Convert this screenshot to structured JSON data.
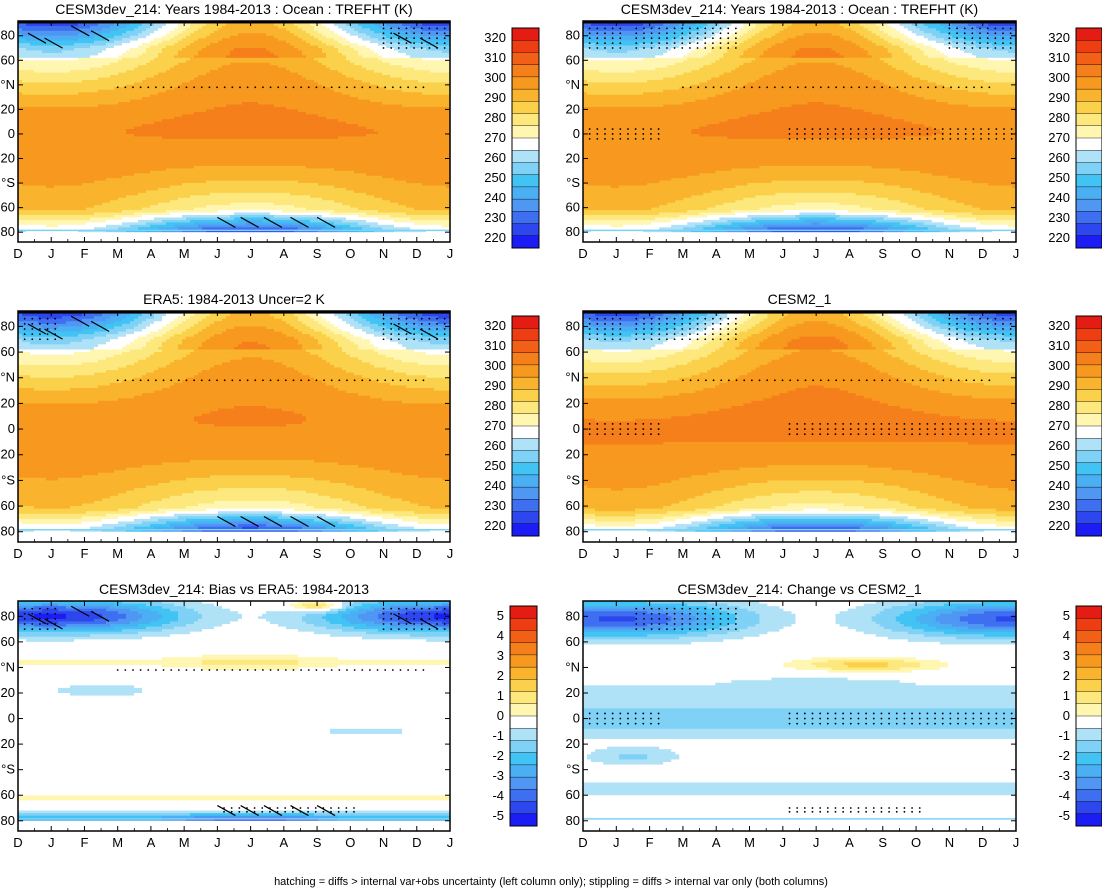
{
  "footer": "hatching = diffs > internal var+obs uncertainty (left column only); stippling = diffs > internal var only (both columns)",
  "palette_abs": [
    "#1c1cf5",
    "#2d46ee",
    "#3e6ff0",
    "#4f97f3",
    "#4ab0f3",
    "#41c4f4",
    "#7fd1f6",
    "#b0e2f7",
    "#ffffff",
    "#fff6b2",
    "#fde87e",
    "#fbd14b",
    "#f9b32c",
    "#f8991f",
    "#f57f1a",
    "#f25f16",
    "#ee3d12",
    "#e51c14"
  ],
  "palette_diff": [
    "#1c1cf5",
    "#2d46ee",
    "#3e6ff0",
    "#4f97f3",
    "#4ab0f3",
    "#41c4f4",
    "#7fd1f6",
    "#b0e2f7",
    "#ffffff",
    "#fff6b2",
    "#fde87e",
    "#fbd14b",
    "#f9b32c",
    "#f8991f",
    "#f57f1a",
    "#f25f16",
    "#ee3d12",
    "#e51c14"
  ],
  "chart_data": [
    {
      "type": "heatmap",
      "title": "CESM3dev_214: Years 1984-2013 : Ocean : TREFHT (K)",
      "kind": "abs",
      "variant": "model",
      "hatch": true,
      "x_ticks": [
        "D",
        "J",
        "F",
        "M",
        "A",
        "M",
        "J",
        "J",
        "A",
        "S",
        "O",
        "N",
        "D",
        "J"
      ],
      "y_ticks": [
        "80",
        "60",
        "°N",
        "20",
        "0",
        "20",
        "°S",
        "60",
        "80"
      ],
      "colorbar_labels": [
        "320",
        "310",
        "300",
        "290",
        "280",
        "270",
        "260",
        "250",
        "240",
        "230",
        "220"
      ],
      "value_range": [
        215,
        325
      ]
    },
    {
      "type": "heatmap",
      "title": "CESM3dev_214: Years 1984-2013 : Ocean : TREFHT (K)",
      "kind": "abs",
      "variant": "model",
      "hatch": false,
      "x_ticks": [
        "D",
        "J",
        "F",
        "M",
        "A",
        "M",
        "J",
        "J",
        "A",
        "S",
        "O",
        "N",
        "D",
        "J"
      ],
      "y_ticks": [
        "80",
        "60",
        "°N",
        "20",
        "0",
        "20",
        "°S",
        "60",
        "80"
      ],
      "colorbar_labels": [
        "320",
        "310",
        "300",
        "290",
        "280",
        "270",
        "260",
        "250",
        "240",
        "230",
        "220"
      ],
      "value_range": [
        215,
        325
      ]
    },
    {
      "type": "heatmap",
      "title": "ERA5: 1984-2013 Uncer=2 K",
      "kind": "abs",
      "variant": "obs",
      "hatch": true,
      "x_ticks": [
        "D",
        "J",
        "F",
        "M",
        "A",
        "M",
        "J",
        "J",
        "A",
        "S",
        "O",
        "N",
        "D",
        "J"
      ],
      "y_ticks": [
        "80",
        "60",
        "°N",
        "20",
        "0",
        "20",
        "°S",
        "60",
        "80"
      ],
      "colorbar_labels": [
        "320",
        "310",
        "300",
        "290",
        "280",
        "270",
        "260",
        "250",
        "240",
        "230",
        "220"
      ],
      "value_range": [
        215,
        325
      ]
    },
    {
      "type": "heatmap",
      "title": "CESM2_1",
      "kind": "abs",
      "variant": "base",
      "hatch": false,
      "x_ticks": [
        "D",
        "J",
        "F",
        "M",
        "A",
        "M",
        "J",
        "J",
        "A",
        "S",
        "O",
        "N",
        "D",
        "J"
      ],
      "y_ticks": [
        "80",
        "60",
        "°N",
        "20",
        "0",
        "20",
        "°S",
        "60",
        "80"
      ],
      "colorbar_labels": [
        "320",
        "310",
        "300",
        "290",
        "280",
        "270",
        "260",
        "250",
        "240",
        "230",
        "220"
      ],
      "value_range": [
        215,
        325
      ]
    },
    {
      "type": "heatmap",
      "title": "CESM3dev_214: Bias vs ERA5: 1984-2013",
      "kind": "diff",
      "variant": "bias",
      "hatch": true,
      "x_ticks": [
        "D",
        "J",
        "F",
        "M",
        "A",
        "M",
        "J",
        "J",
        "A",
        "S",
        "O",
        "N",
        "D",
        "J"
      ],
      "y_ticks": [
        "80",
        "60",
        "°N",
        "20",
        "0",
        "20",
        "°S",
        "60",
        "80"
      ],
      "colorbar_labels": [
        "5",
        "4",
        "3",
        "2",
        "1",
        "0",
        "-1",
        "-2",
        "-3",
        "-4",
        "-5"
      ],
      "value_range": [
        -5.5,
        5.5
      ]
    },
    {
      "type": "heatmap",
      "title": "CESM3dev_214: Change vs CESM2_1",
      "kind": "diff",
      "variant": "change",
      "hatch": false,
      "x_ticks": [
        "D",
        "J",
        "F",
        "M",
        "A",
        "M",
        "J",
        "J",
        "A",
        "S",
        "O",
        "N",
        "D",
        "J"
      ],
      "y_ticks": [
        "80",
        "60",
        "°N",
        "20",
        "0",
        "20",
        "°S",
        "60",
        "80"
      ],
      "colorbar_labels": [
        "5",
        "4",
        "3",
        "2",
        "1",
        "0",
        "-1",
        "-2",
        "-3",
        "-4",
        "-5"
      ],
      "value_range": [
        -5.5,
        5.5
      ]
    }
  ]
}
